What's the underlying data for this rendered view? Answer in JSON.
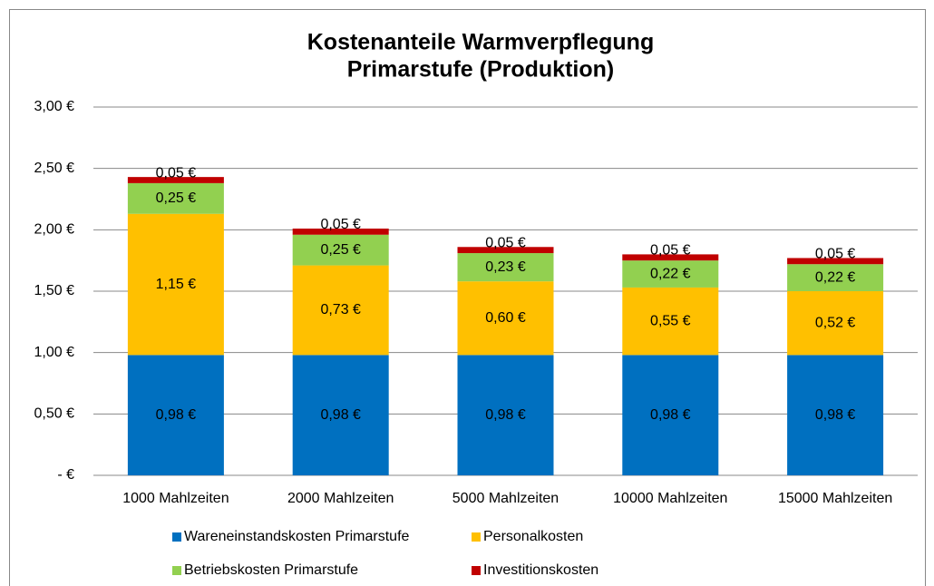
{
  "chart_data": {
    "type": "stacked_bar",
    "title": [
      "Kostenanteile Warmverpflegung",
      "Primarstufe (Produktion)"
    ],
    "categories": [
      "1000 Mahlzeiten",
      "2000 Mahlzeiten",
      "5000 Mahlzeiten",
      "10000 Mahlzeiten",
      "15000 Mahlzeiten"
    ],
    "series": [
      {
        "name": "Wareneinstandskosten Primarstufe",
        "color": "#0070c0",
        "values": [
          0.98,
          0.98,
          0.98,
          0.98,
          0.98
        ],
        "value_labels": [
          "0,98 €",
          "0,98 €",
          "0,98 €",
          "0,98 €",
          "0,98 €"
        ]
      },
      {
        "name": "Personalkosten",
        "color": "#ffc000",
        "values": [
          1.15,
          0.73,
          0.6,
          0.55,
          0.52
        ],
        "value_labels": [
          "1,15 €",
          "0,73 €",
          "0,60 €",
          "0,55 €",
          "0,52 €"
        ]
      },
      {
        "name": "Betriebskosten Primarstufe",
        "color": "#92d050",
        "values": [
          0.25,
          0.25,
          0.23,
          0.22,
          0.22
        ],
        "value_labels": [
          "0,25 €",
          "0,25 €",
          "0,23 €",
          "0,22 €",
          "0,22 €"
        ]
      },
      {
        "name": "Investitionskosten",
        "color": "#c00000",
        "values": [
          0.05,
          0.05,
          0.05,
          0.05,
          0.05
        ],
        "value_labels": [
          "0,05 €",
          "0,05 €",
          "0,05 €",
          "0,05 €",
          "0,05 €"
        ]
      }
    ],
    "ylim": [
      0,
      3
    ],
    "yticks": [
      {
        "value": 0,
        "label": "-   €"
      },
      {
        "value": 0.5,
        "label": "0,50 €"
      },
      {
        "value": 1,
        "label": "1,00 €"
      },
      {
        "value": 1.5,
        "label": "1,50 €"
      },
      {
        "value": 2,
        "label": "2,00 €"
      },
      {
        "value": 2.5,
        "label": "2,50 €"
      },
      {
        "value": 3,
        "label": "3,00 €"
      }
    ],
    "grid": true,
    "legend": "bottom"
  }
}
